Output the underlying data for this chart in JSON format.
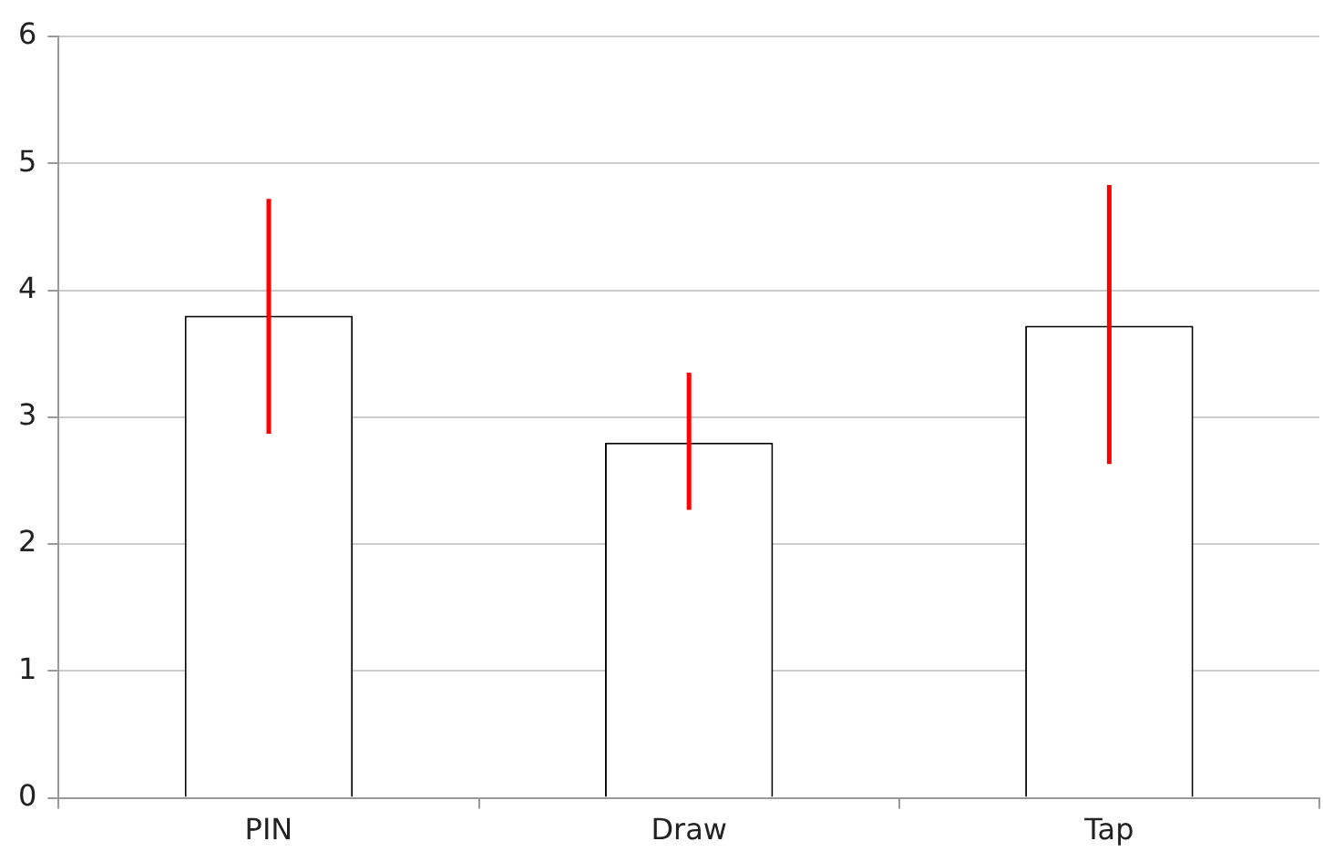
{
  "chart_data": {
    "type": "bar",
    "categories": [
      "PIN",
      "Draw",
      "Tap"
    ],
    "values": [
      3.8,
      2.8,
      3.72
    ],
    "color": "#ffffff",
    "errors": [
      [
        2.87,
        4.72
      ],
      [
        2.27,
        3.35
      ],
      [
        2.63,
        4.83
      ]
    ],
    "ylim": [
      0,
      6
    ],
    "yticks": [
      0,
      1,
      2,
      3,
      4,
      5,
      6
    ],
    "grid": "y"
  }
}
